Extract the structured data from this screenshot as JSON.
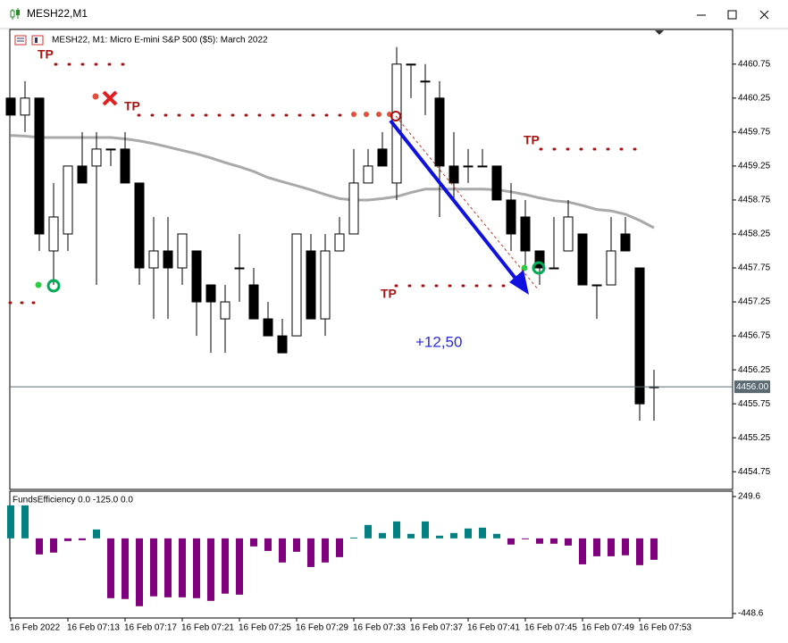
{
  "window": {
    "title": "MESH22,M1"
  },
  "chart_data": [
    {
      "type": "candlestick",
      "title": "MESH22, M1:  Micro E-mini S&P 500 ($5): March 2022",
      "categories": [
        "16 Feb 2022",
        null,
        null,
        null,
        "16 Feb 07:13",
        null,
        null,
        null,
        "16 Feb 07:17",
        null,
        null,
        null,
        "16 Feb 07:21",
        null,
        null,
        null,
        "16 Feb 07:25",
        null,
        null,
        null,
        "16 Feb 07:29",
        null,
        null,
        null,
        "16 Feb 07:33",
        null,
        null,
        null,
        "16 Feb 07:37",
        null,
        null,
        null,
        "16 Feb 07:41",
        null,
        null,
        null,
        "16 Feb 07:45",
        null,
        null,
        null,
        "16 Feb 07:49",
        null,
        null,
        null,
        "16 Feb 07:53",
        null
      ],
      "open": [
        4460.25,
        4460.0,
        4460.25,
        4458.0,
        4458.25,
        4459.25,
        4459.25,
        4459.5,
        4459.5,
        4459.0,
        4457.75,
        4458.0,
        4457.75,
        4458.0,
        4457.5,
        4457.0,
        4457.75,
        4457.5,
        4457.0,
        4456.75,
        4456.75,
        4458.0,
        4457.0,
        4458.0,
        4458.25,
        4459.0,
        4459.5,
        4459.0,
        4460.75,
        4460.5,
        4460.25,
        4459.25,
        4459.25,
        4459.25,
        4459.25,
        4458.75,
        4458.5,
        4458.0,
        4457.75,
        4458.0,
        4458.25,
        4457.5,
        4457.5,
        4458.25,
        4457.75,
        4456.0
      ],
      "high": [
        4460.25,
        4460.5,
        4460.25,
        4459.0,
        4459.25,
        4459.75,
        4459.75,
        4459.5,
        4459.75,
        4459.0,
        4458.5,
        4458.5,
        4458.25,
        4458.0,
        4457.5,
        4457.5,
        4458.25,
        4457.75,
        4457.25,
        4457.0,
        4458.25,
        4458.25,
        4458.25,
        4458.5,
        4459.5,
        4459.5,
        4459.75,
        4461.0,
        4460.75,
        4460.75,
        4460.5,
        4459.75,
        4459.5,
        4459.5,
        4459.25,
        4459.0,
        4458.75,
        4458.0,
        4458.5,
        4458.75,
        4458.25,
        4457.5,
        4458.5,
        4458.5,
        4457.75,
        4456.25
      ],
      "low": [
        4460.0,
        4459.75,
        4458.0,
        4457.5,
        4458.0,
        4459.0,
        4457.5,
        4459.25,
        4459.0,
        4457.5,
        4457.0,
        4457.0,
        4457.5,
        4456.75,
        4456.5,
        4456.5,
        4457.25,
        4457.0,
        4456.75,
        4456.5,
        4456.75,
        4457.0,
        4456.75,
        4458.0,
        4458.25,
        4459.0,
        4459.25,
        4458.75,
        4460.25,
        4460.0,
        4458.5,
        4458.75,
        4459.0,
        4459.25,
        4458.75,
        4458.0,
        4457.75,
        4457.5,
        4457.75,
        4458.0,
        4457.5,
        4457.0,
        4457.5,
        4458.0,
        4455.5,
        4455.5
      ],
      "close": [
        4460.0,
        4460.25,
        4458.25,
        4458.5,
        4459.25,
        4459.0,
        4459.5,
        4459.5,
        4459.0,
        4457.75,
        4458.0,
        4457.75,
        4458.25,
        4457.25,
        4457.25,
        4457.25,
        4457.75,
        4457.0,
        4456.75,
        4456.5,
        4458.25,
        4457.0,
        4458.0,
        4458.25,
        4459.0,
        4459.25,
        4459.25,
        4460.75,
        4460.75,
        4460.5,
        4459.25,
        4459.0,
        4459.25,
        4459.25,
        4458.75,
        4458.25,
        4458.0,
        4457.75,
        4457.75,
        4458.5,
        4457.5,
        4457.5,
        4458.0,
        4458.0,
        4455.75,
        4456.0
      ],
      "overlay_line": {
        "color": "#a9a9a9",
        "values": [
          4459.7,
          4459.69,
          4459.67,
          4459.67,
          4459.67,
          4459.67,
          4459.67,
          4459.67,
          4459.65,
          4459.62,
          4459.58,
          4459.53,
          4459.48,
          4459.43,
          4459.37,
          4459.3,
          4459.24,
          4459.17,
          4459.08,
          4459.02,
          4458.96,
          4458.9,
          4458.83,
          4458.77,
          4458.75,
          4458.75,
          4458.77,
          4458.8,
          4458.86,
          4458.91,
          4458.91,
          4458.91,
          4458.91,
          4458.91,
          4458.9,
          4458.87,
          4458.83,
          4458.78,
          4458.74,
          4458.72,
          4458.67,
          4458.61,
          4458.59,
          4458.54,
          4458.45,
          4458.34
        ]
      },
      "up_color": "#ffffff",
      "down_color": "#000000",
      "ylim": [
        4454.49,
        4461.26
      ],
      "yticks": [
        4460.75,
        4460.25,
        4459.75,
        4459.25,
        4458.75,
        4458.25,
        4457.75,
        4457.25,
        4456.75,
        4456.25,
        4455.75,
        4455.25,
        4454.75
      ],
      "current_price": {
        "value": 4456,
        "label": "4456.00"
      },
      "annotations": [
        "TP",
        "TP",
        "TP",
        "TP",
        "+12,50"
      ]
    },
    {
      "type": "bar",
      "title": "FundsEfficiency 0.0 -125.0 0.0",
      "values": [
        197,
        197,
        -96,
        -85,
        -16,
        -11,
        53,
        -357,
        -362,
        -405,
        -346,
        -352,
        -352,
        -357,
        -373,
        -330,
        -336,
        -48,
        -75,
        -144,
        -80,
        -171,
        -144,
        -112,
        5,
        80,
        32,
        101,
        27,
        101,
        16,
        32,
        59,
        64,
        27,
        -37,
        -5,
        -32,
        -32,
        -43,
        -155,
        -107,
        -107,
        -101,
        -160,
        -128
      ],
      "positive_color": "#008080",
      "negative_color": "#800080",
      "ylim": [
        -448.6,
        249.6
      ],
      "yticks": [
        249.6,
        -448.6
      ]
    }
  ]
}
